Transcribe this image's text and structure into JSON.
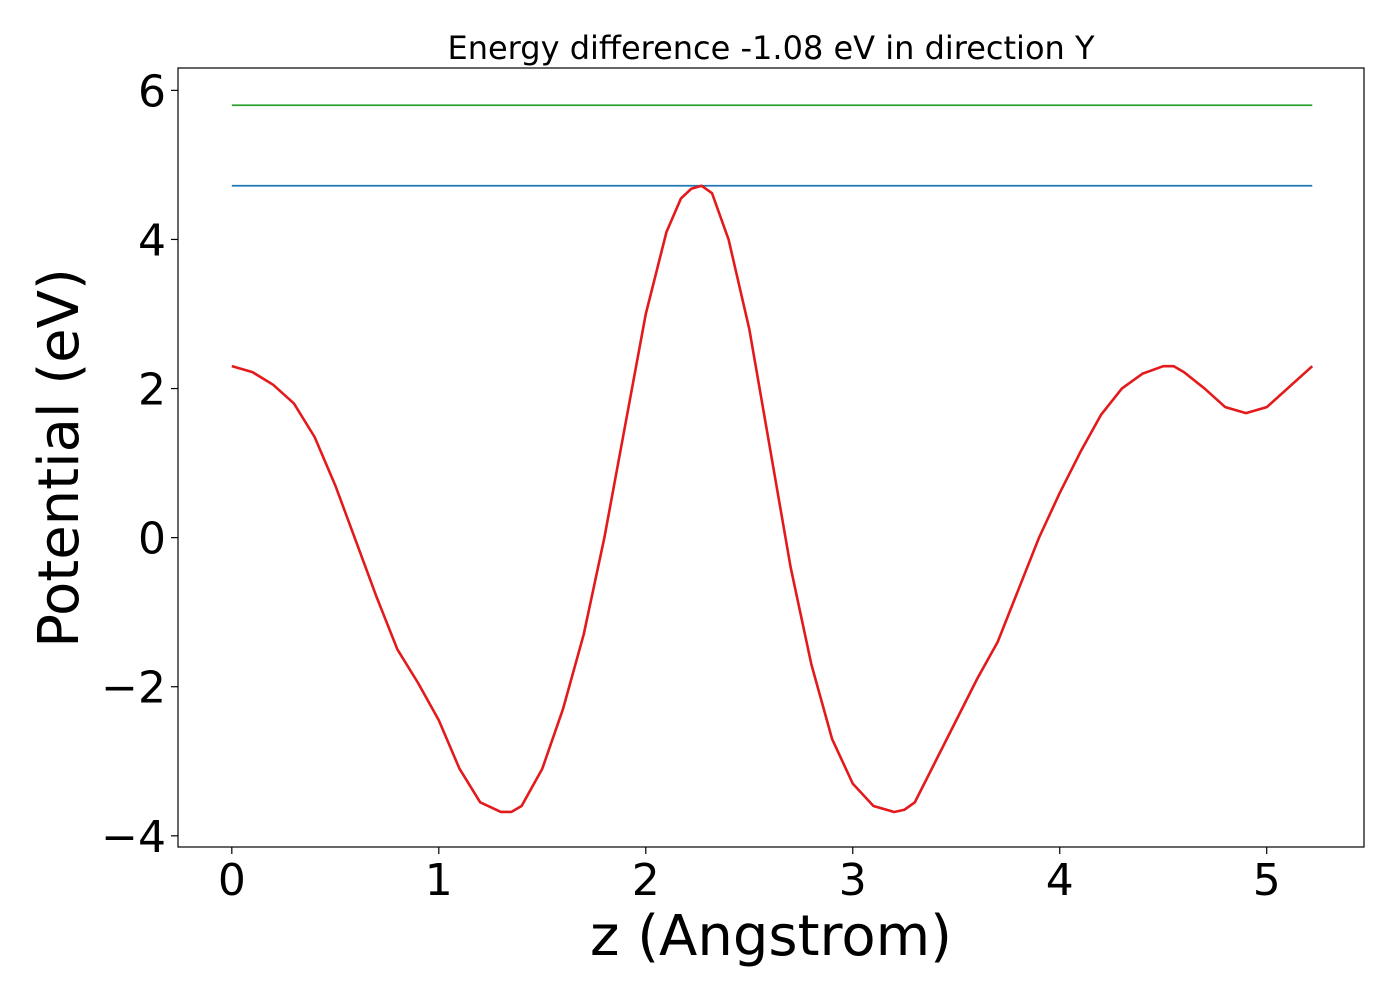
{
  "chart_data": {
    "type": "line",
    "title": "Energy difference -1.08 eV in direction Y",
    "xlabel": "z (Angstrom)",
    "ylabel": "Potential (eV)",
    "xlim": [
      -0.26,
      5.47
    ],
    "ylim": [
      -4.15,
      6.3
    ],
    "grid": false,
    "x_ticks": [
      0,
      1,
      2,
      3,
      4,
      5
    ],
    "x_tick_labels": [
      "0",
      "1",
      "2",
      "3",
      "4",
      "5"
    ],
    "y_ticks": [
      -4,
      -2,
      0,
      2,
      4,
      6
    ],
    "y_tick_labels": [
      "−4",
      "−2",
      "0",
      "2",
      "4",
      "6"
    ],
    "series": [
      {
        "color": "#2ca02c",
        "x": [
          0,
          5.22
        ],
        "y": [
          5.8,
          5.8
        ]
      },
      {
        "color": "#1f77b4",
        "x": [
          0,
          5.22
        ],
        "y": [
          4.72,
          4.72
        ]
      },
      {
        "color": "#e31a1c",
        "x": [
          0,
          0.1,
          0.2,
          0.3,
          0.4,
          0.5,
          0.6,
          0.7,
          0.8,
          0.9,
          1.0,
          1.1,
          1.2,
          1.3,
          1.35,
          1.4,
          1.5,
          1.6,
          1.7,
          1.8,
          1.9,
          2.0,
          2.1,
          2.17,
          2.22,
          2.27,
          2.32,
          2.4,
          2.5,
          2.6,
          2.7,
          2.8,
          2.9,
          3.0,
          3.1,
          3.2,
          3.25,
          3.3,
          3.4,
          3.5,
          3.6,
          3.7,
          3.8,
          3.9,
          4.0,
          4.1,
          4.2,
          4.3,
          4.4,
          4.5,
          4.55,
          4.6,
          4.7,
          4.8,
          4.9,
          5.0,
          5.1,
          5.22
        ],
        "y": [
          2.3,
          2.22,
          2.05,
          1.8,
          1.35,
          0.7,
          -0.05,
          -0.8,
          -1.5,
          -1.95,
          -2.45,
          -3.1,
          -3.55,
          -3.68,
          -3.68,
          -3.6,
          -3.1,
          -2.3,
          -1.3,
          0.0,
          1.5,
          3.0,
          4.1,
          4.55,
          4.68,
          4.72,
          4.62,
          4.0,
          2.8,
          1.2,
          -0.4,
          -1.7,
          -2.7,
          -3.3,
          -3.6,
          -3.68,
          -3.65,
          -3.55,
          -3.0,
          -2.45,
          -1.9,
          -1.4,
          -0.7,
          0.0,
          0.6,
          1.15,
          1.65,
          2.0,
          2.2,
          2.3,
          2.3,
          2.22,
          2.0,
          1.75,
          1.67,
          1.75,
          2.0,
          2.3
        ]
      }
    ]
  }
}
